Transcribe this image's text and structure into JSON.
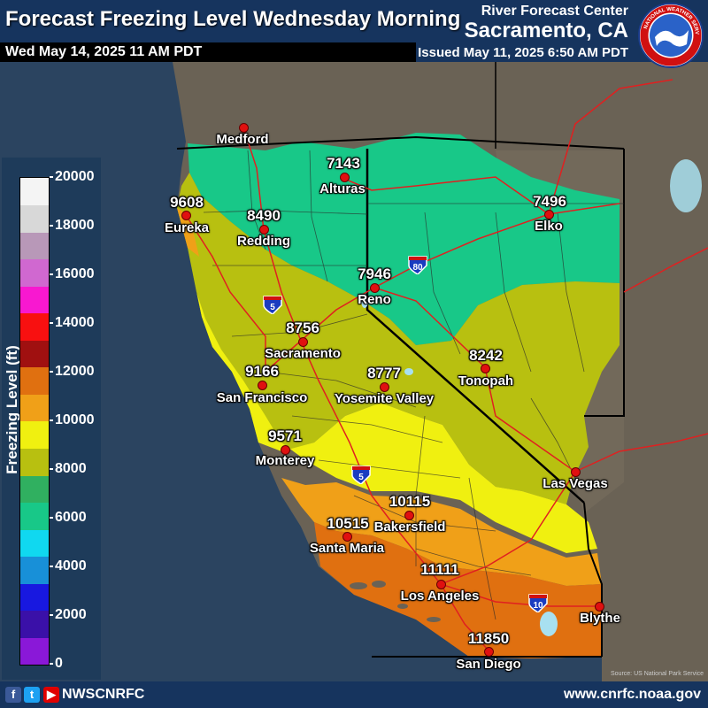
{
  "header": {
    "title": "Forecast Freezing Level Wednesday Morning",
    "valid_time": "Wed May 14, 2025 11 AM PDT",
    "office": "River Forecast Center",
    "place": "Sacramento, CA",
    "issued": "Issued May 11, 2025 6:50 AM PDT",
    "logo_text": "NATIONAL WEATHER SERVICE"
  },
  "legend": {
    "title": "Freezing Level (ft)",
    "ticks": [
      "20000",
      "18000",
      "16000",
      "14000",
      "12000",
      "10000",
      "8000",
      "6000",
      "4000",
      "2000",
      "0"
    ],
    "colors": [
      "#8a18d8",
      "#3a10a8",
      "#1818e0",
      "#1890d8",
      "#10d8f0",
      "#18c888",
      "#30b060",
      "#b8c010",
      "#f0f010",
      "#f0a018",
      "#e07010",
      "#a01010",
      "#f81010",
      "#f818d0",
      "#d068d0",
      "#b898b8",
      "#d8d8d8",
      "#f4f4f4"
    ]
  },
  "stations": [
    {
      "name": "Medford",
      "value": ""
    },
    {
      "name": "Alturas",
      "value": "7143"
    },
    {
      "name": "Eureka",
      "value": "9608"
    },
    {
      "name": "Redding",
      "value": "8490"
    },
    {
      "name": "Elko",
      "value": "7496"
    },
    {
      "name": "Reno",
      "value": "7946"
    },
    {
      "name": "Sacramento",
      "value": "8756"
    },
    {
      "name": "San Francisco",
      "value": "9166"
    },
    {
      "name": "Yosemite Valley",
      "value": "8777"
    },
    {
      "name": "Tonopah",
      "value": "8242"
    },
    {
      "name": "Monterey",
      "value": "9571"
    },
    {
      "name": "Las Vegas",
      "value": ""
    },
    {
      "name": "Bakersfield",
      "value": "10115"
    },
    {
      "name": "Santa Maria",
      "value": "10515"
    },
    {
      "name": "Los Angeles",
      "value": "11111"
    },
    {
      "name": "Blythe",
      "value": ""
    },
    {
      "name": "San Diego",
      "value": "11850"
    }
  ],
  "highways": [
    "5",
    "80",
    "5",
    "10"
  ],
  "footer": {
    "handle": "NWSCNRFC",
    "website": "www.cnrfc.noaa.gov",
    "source": "Source: US National Park Service"
  },
  "colors": {
    "header_bg": "#16345e",
    "ocean": "#2b4460",
    "terrain": "#6a6255"
  }
}
